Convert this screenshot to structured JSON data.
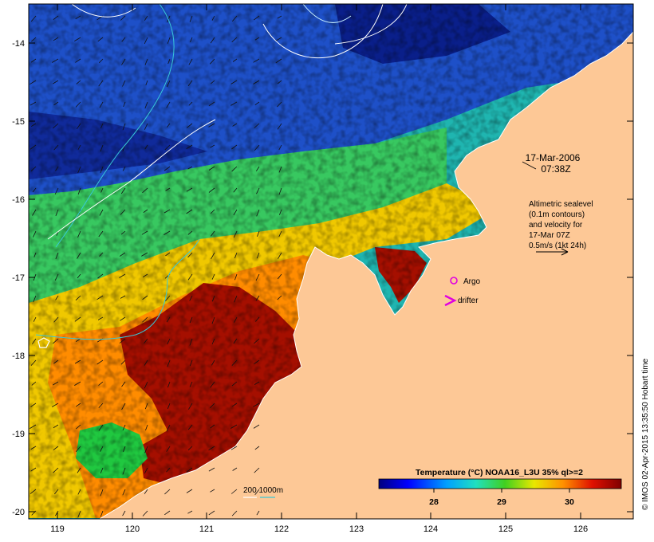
{
  "map": {
    "date_line": "17-Mar-2006",
    "time_line": "07:38Z",
    "altimetry_lines": [
      "Altimetric sealevel",
      "(0.1m contours)",
      "and velocity for",
      "17-Mar 07Z",
      "0.5m/s (1kt 24h)"
    ],
    "argo_label": "Argo",
    "drifter_label": "drifter",
    "depth_legend": "200  1000m",
    "credit": "© IMOS 02-Apr-2015 13:35:50 Hobart time",
    "colorbar": {
      "title": "Temperature (°C) NOAA16_L3U 35% ql>=2",
      "ticks": [
        "28",
        "29",
        "30"
      ]
    },
    "lat_ticks": [
      "-14",
      "-15",
      "-16",
      "-17",
      "-18",
      "-19",
      "-20"
    ],
    "lon_ticks": [
      "119",
      "120",
      "121",
      "122",
      "123",
      "124",
      "125",
      "126"
    ],
    "colors": {
      "land": "#fdc896",
      "warm": "#a50f00",
      "cold": "#001a99",
      "argo": "#e000e0",
      "contour": "#38c8d8"
    }
  }
}
